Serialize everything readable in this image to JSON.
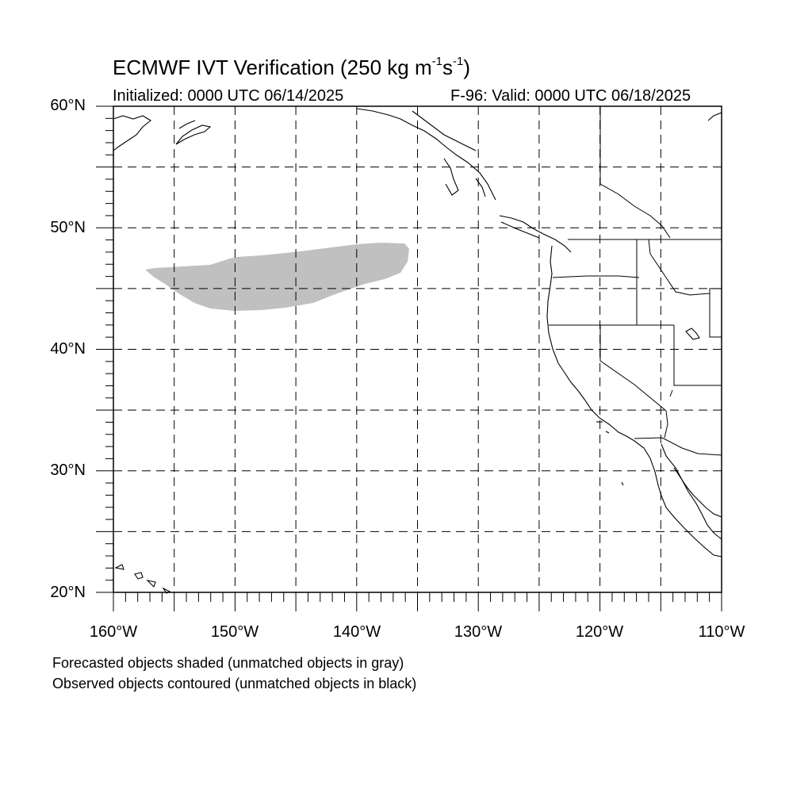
{
  "title": {
    "main_prefix": "ECMWF IVT Verification (250 kg m",
    "exp1": "-1",
    "mid": "s",
    "exp2": "-1",
    "suffix": ")"
  },
  "initialized": "Initialized: 0000 UTC 06/14/2025",
  "valid": "F-96: Valid: 0000 UTC 06/18/2025",
  "lat_labels": [
    "60°N",
    "50°N",
    "40°N",
    "30°N",
    "20°N"
  ],
  "lon_labels": [
    "160°W",
    "150°W",
    "140°W",
    "130°W",
    "120°W",
    "110°W"
  ],
  "captions": [
    "Forecasted objects shaded (unmatched objects in gray)",
    "Observed objects contoured (unmatched objects in black)"
  ],
  "colors": {
    "forecast_object": "#c0c0c0",
    "coastline": "#000000",
    "grid": "#000000"
  },
  "map": {
    "lon_min": -160,
    "lon_max": -110,
    "lat_min": 20,
    "lat_max": 60,
    "grid_step_deg": 5
  }
}
